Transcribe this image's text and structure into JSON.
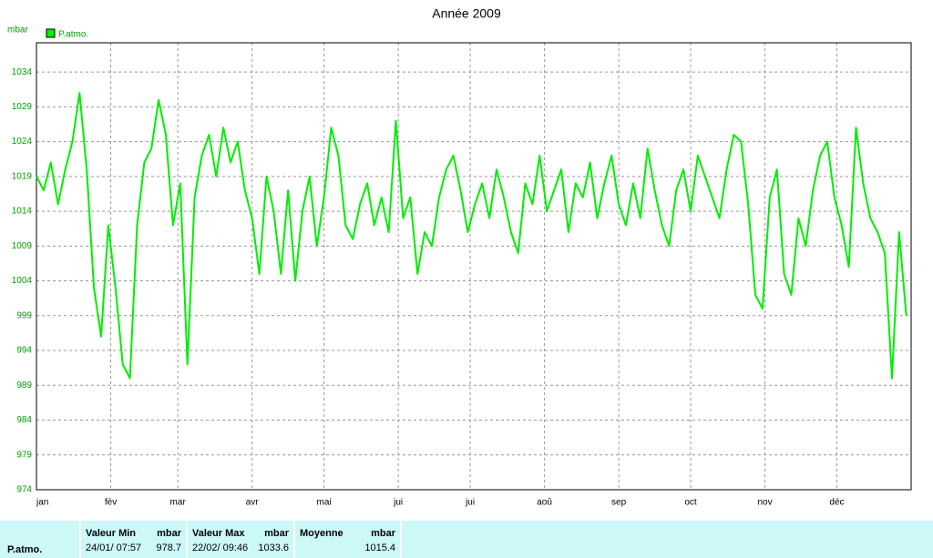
{
  "chart_data": {
    "type": "line",
    "title": "Année 2009",
    "ylabel": "mbar",
    "series": [
      {
        "name": "P.atmo.",
        "color": "#00ee00",
        "x": [
          1,
          4,
          7,
          10,
          13,
          16,
          19,
          22,
          25,
          28,
          31,
          34,
          37,
          40,
          43,
          46,
          49,
          52,
          55,
          58,
          61,
          64,
          67,
          70,
          73,
          76,
          79,
          82,
          85,
          88,
          91,
          94,
          97,
          100,
          103,
          106,
          109,
          112,
          115,
          118,
          121,
          124,
          127,
          130,
          133,
          136,
          139,
          142,
          145,
          148,
          151,
          154,
          157,
          160,
          163,
          166,
          169,
          172,
          175,
          178,
          181,
          184,
          187,
          190,
          193,
          196,
          199,
          202,
          205,
          208,
          211,
          214,
          217,
          220,
          223,
          226,
          229,
          232,
          235,
          238,
          241,
          244,
          247,
          250,
          253,
          256,
          259,
          262,
          265,
          268,
          271,
          274,
          277,
          280,
          283,
          286,
          289,
          292,
          295,
          298,
          301,
          304,
          307,
          310,
          313,
          316,
          319,
          322,
          325,
          328,
          331,
          334,
          337,
          340,
          343,
          346,
          349,
          352,
          355,
          358,
          361,
          364
        ],
        "values": [
          1019,
          1017,
          1021,
          1015,
          1020,
          1024,
          1031,
          1020,
          1003,
          996,
          1012,
          1003,
          992,
          990,
          1012,
          1021,
          1023,
          1030,
          1025,
          1012,
          1018,
          992,
          1016,
          1022,
          1025,
          1019,
          1026,
          1021,
          1024,
          1017,
          1013,
          1005,
          1019,
          1014,
          1005,
          1017,
          1004,
          1014,
          1019,
          1009,
          1016,
          1026,
          1022,
          1012,
          1010,
          1015,
          1018,
          1012,
          1016,
          1011,
          1027,
          1013,
          1016,
          1005,
          1011,
          1009,
          1016,
          1020,
          1022,
          1017,
          1011,
          1015,
          1018,
          1013,
          1020,
          1016,
          1011,
          1008,
          1018,
          1015,
          1022,
          1014,
          1017,
          1020,
          1011,
          1018,
          1016,
          1021,
          1013,
          1018,
          1022,
          1015,
          1012,
          1018,
          1013,
          1023,
          1017,
          1012,
          1009,
          1017,
          1020,
          1014,
          1022,
          1019,
          1016,
          1013,
          1020,
          1025,
          1024,
          1015,
          1002,
          1000,
          1016,
          1020,
          1005,
          1002,
          1013,
          1009,
          1017,
          1022,
          1024,
          1016,
          1012,
          1006,
          1026,
          1018,
          1013,
          1011,
          1008,
          990,
          1011,
          999
        ]
      }
    ],
    "xlim": [
      1,
      366
    ],
    "xticks": [
      {
        "value": 1,
        "label": "jan"
      },
      {
        "value": 32,
        "label": "fév"
      },
      {
        "value": 60,
        "label": "mar"
      },
      {
        "value": 91,
        "label": "avr"
      },
      {
        "value": 121,
        "label": "mai"
      },
      {
        "value": 152,
        "label": "jui"
      },
      {
        "value": 182,
        "label": "jui"
      },
      {
        "value": 213,
        "label": "aoû"
      },
      {
        "value": 244,
        "label": "sep"
      },
      {
        "value": 274,
        "label": "oct"
      },
      {
        "value": 305,
        "label": "nov"
      },
      {
        "value": 335,
        "label": "déc"
      }
    ],
    "ylim": [
      974,
      1038.2
    ],
    "yticks": [
      974,
      979,
      984,
      989,
      994,
      999,
      1004,
      1009,
      1014,
      1019,
      1024,
      1029,
      1034
    ],
    "grid": true
  },
  "stats": {
    "row_label": "P.atmo.",
    "columns": [
      {
        "title": "Valeur Min",
        "unit": "mbar",
        "date": "24/01/  07:57",
        "value": "978.7"
      },
      {
        "title": "Valeur Max",
        "unit": "mbar",
        "date": "22/02/  09:46",
        "value": "1033.6"
      },
      {
        "title": "Moyenne",
        "unit": "mbar",
        "value": "1015.4"
      }
    ]
  }
}
